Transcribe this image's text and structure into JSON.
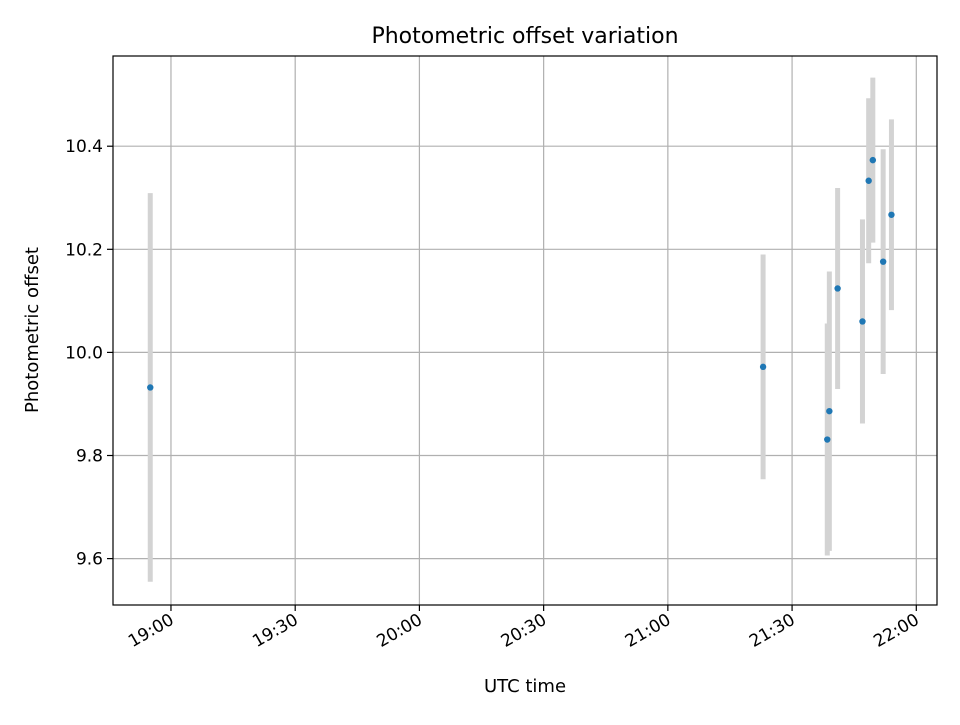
{
  "chart_data": {
    "type": "scatter",
    "title": "Photometric offset variation",
    "xlabel": "UTC time",
    "ylabel": "Photometric offset",
    "x_unit": "UTC time of day",
    "x_ticks": [
      "19:00",
      "19:30",
      "20:00",
      "20:30",
      "21:00",
      "21:30",
      "22:00"
    ],
    "y_ticks": [
      9.6,
      9.8,
      10.0,
      10.2,
      10.4
    ],
    "xlim": [
      "18:46",
      "22:05"
    ],
    "ylim": [
      9.51,
      10.575
    ],
    "grid": true,
    "legend": "none",
    "series": [
      {
        "color": "#1f77b4",
        "errorbar_color": "#d3d3d3",
        "points": [
          {
            "x": "18:55",
            "y": 9.932,
            "yerr": 0.377
          },
          {
            "x": "21:23",
            "y": 9.972,
            "yerr": 0.218
          },
          {
            "x": "21:38.5",
            "y": 9.831,
            "yerr": 0.225
          },
          {
            "x": "21:39",
            "y": 9.886,
            "yerr": 0.271
          },
          {
            "x": "21:41",
            "y": 10.124,
            "yerr": 0.195
          },
          {
            "x": "21:47",
            "y": 10.06,
            "yerr": 0.198
          },
          {
            "x": "21:48.5",
            "y": 10.333,
            "yerr": 0.16
          },
          {
            "x": "21:49.5",
            "y": 10.373,
            "yerr": 0.16
          },
          {
            "x": "21:52",
            "y": 10.176,
            "yerr": 0.218
          },
          {
            "x": "21:54",
            "y": 10.267,
            "yerr": 0.185
          }
        ]
      }
    ]
  }
}
